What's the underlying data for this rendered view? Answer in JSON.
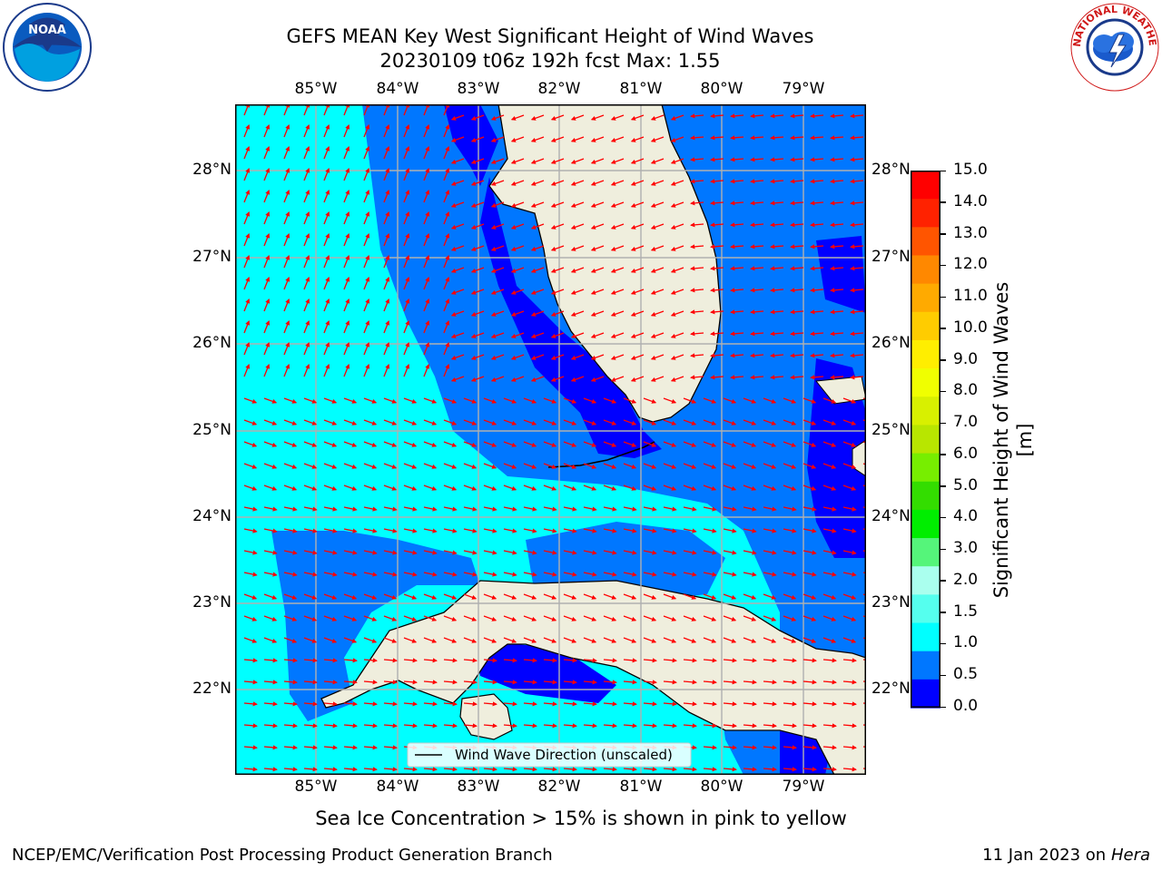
{
  "header": {
    "title_line1": "GEFS MEAN Key West Significant Height of Wind Waves",
    "title_line2": "20230109 t06z 192h fcst   Max: 1.55"
  },
  "logos": {
    "left": {
      "text": "NOAA",
      "icon": "noaa-logo-icon"
    },
    "right": {
      "text": "NATIONAL WEATHER SERVICE",
      "icon": "nws-logo-icon"
    }
  },
  "axes": {
    "lon_labels": [
      "85°W",
      "84°W",
      "83°W",
      "82°W",
      "81°W",
      "80°W",
      "79°W"
    ],
    "lat_labels": [
      "28°N",
      "27°N",
      "26°N",
      "25°N",
      "24°N",
      "23°N",
      "22°N"
    ]
  },
  "legend": {
    "entry": "Wind Wave Direction (unscaled)"
  },
  "colorbar": {
    "label": "Significant Height of Wind Waves [m]",
    "ticks": [
      "15.0",
      "14.0",
      "13.0",
      "12.0",
      "11.0",
      "10.0",
      "9.0",
      "8.0",
      "7.0",
      "6.0",
      "5.0",
      "4.0",
      "3.0",
      "2.0",
      "1.5",
      "1.0",
      "0.5",
      "0.0"
    ],
    "colors": [
      "#ff0000",
      "#ff2200",
      "#ff5500",
      "#ff8800",
      "#ffaa00",
      "#ffcc00",
      "#ffee00",
      "#f0ff00",
      "#d8f000",
      "#b8e600",
      "#77ee00",
      "#33dd00",
      "#00ee00",
      "#55f57a",
      "#aaffee",
      "#55ffee",
      "#00ffff",
      "#0077ff",
      "#0000ff"
    ]
  },
  "colors": {
    "land": "#efeedd",
    "wave_0_05": "#0000ff",
    "wave_05_10": "#0077ff",
    "wave_10_15": "#00ffff",
    "arrow": "#ff0000",
    "grid": "#b0b0b0"
  },
  "notes": {
    "sea_ice": "Sea Ice Concentration > 15% is shown in pink to yellow"
  },
  "footer": {
    "left": "NCEP/EMC/Verification Post Processing Product Generation Branch",
    "right_date": "11 Jan 2023 on ",
    "right_host": "Hera"
  }
}
